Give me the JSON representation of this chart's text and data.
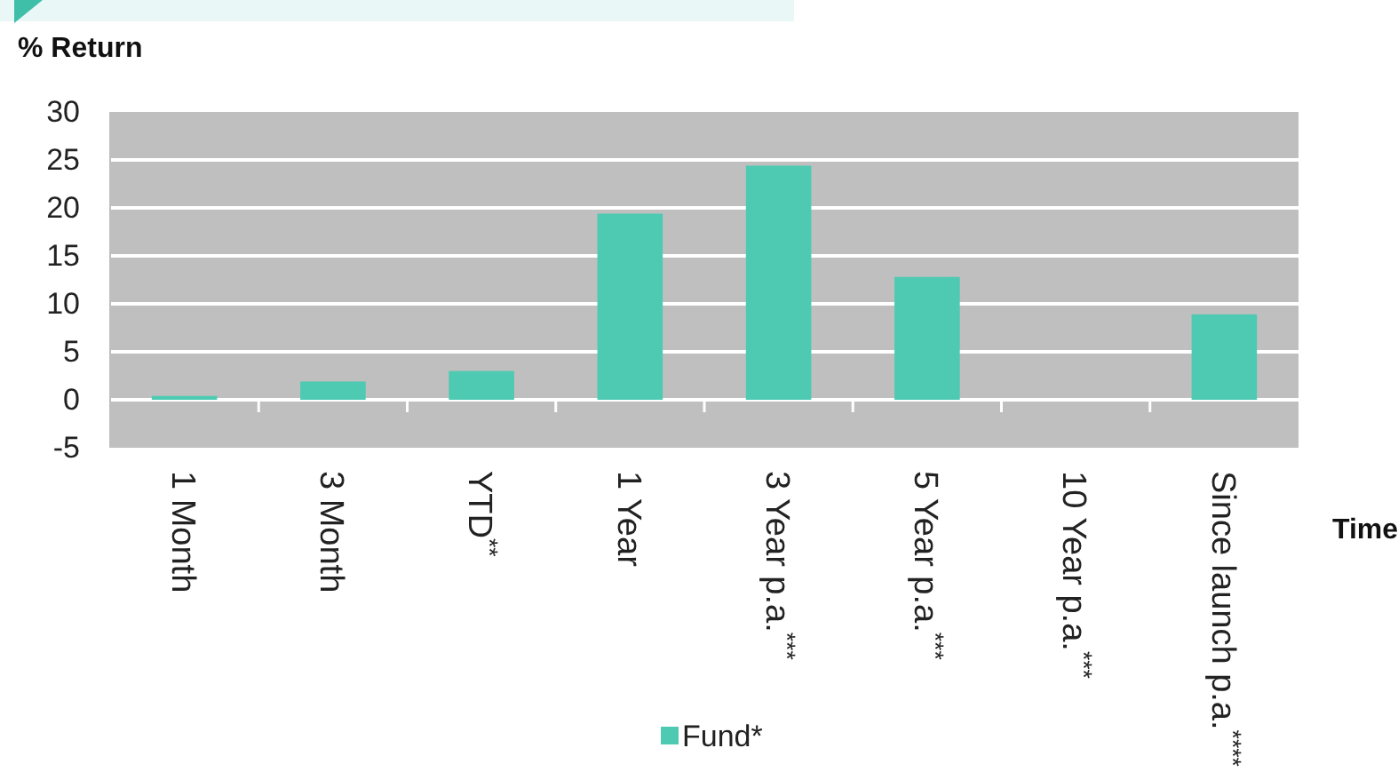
{
  "chart_data": {
    "type": "bar",
    "ylabel": "% Return",
    "xlabel": "Time",
    "categories": [
      "1 Month",
      "3 Month",
      "YTD$^{**}$",
      "1 Year",
      "3 Year p.a.$^{***}$",
      "5 Year p.a.$^{***}$",
      "10 Year p.a.$^{***}$",
      "Since launch p.a.$^{****}$"
    ],
    "series": [
      {
        "name": "Fund*",
        "color": "#4ecab2",
        "values": [
          0.4,
          1.9,
          3.0,
          19.4,
          24.4,
          12.8,
          null,
          8.9
        ]
      }
    ],
    "ylim": [
      -5,
      30
    ],
    "yticks": [
      -5,
      0,
      5,
      10,
      15,
      20,
      25,
      30
    ],
    "grid": "y",
    "legend": "bottom"
  }
}
